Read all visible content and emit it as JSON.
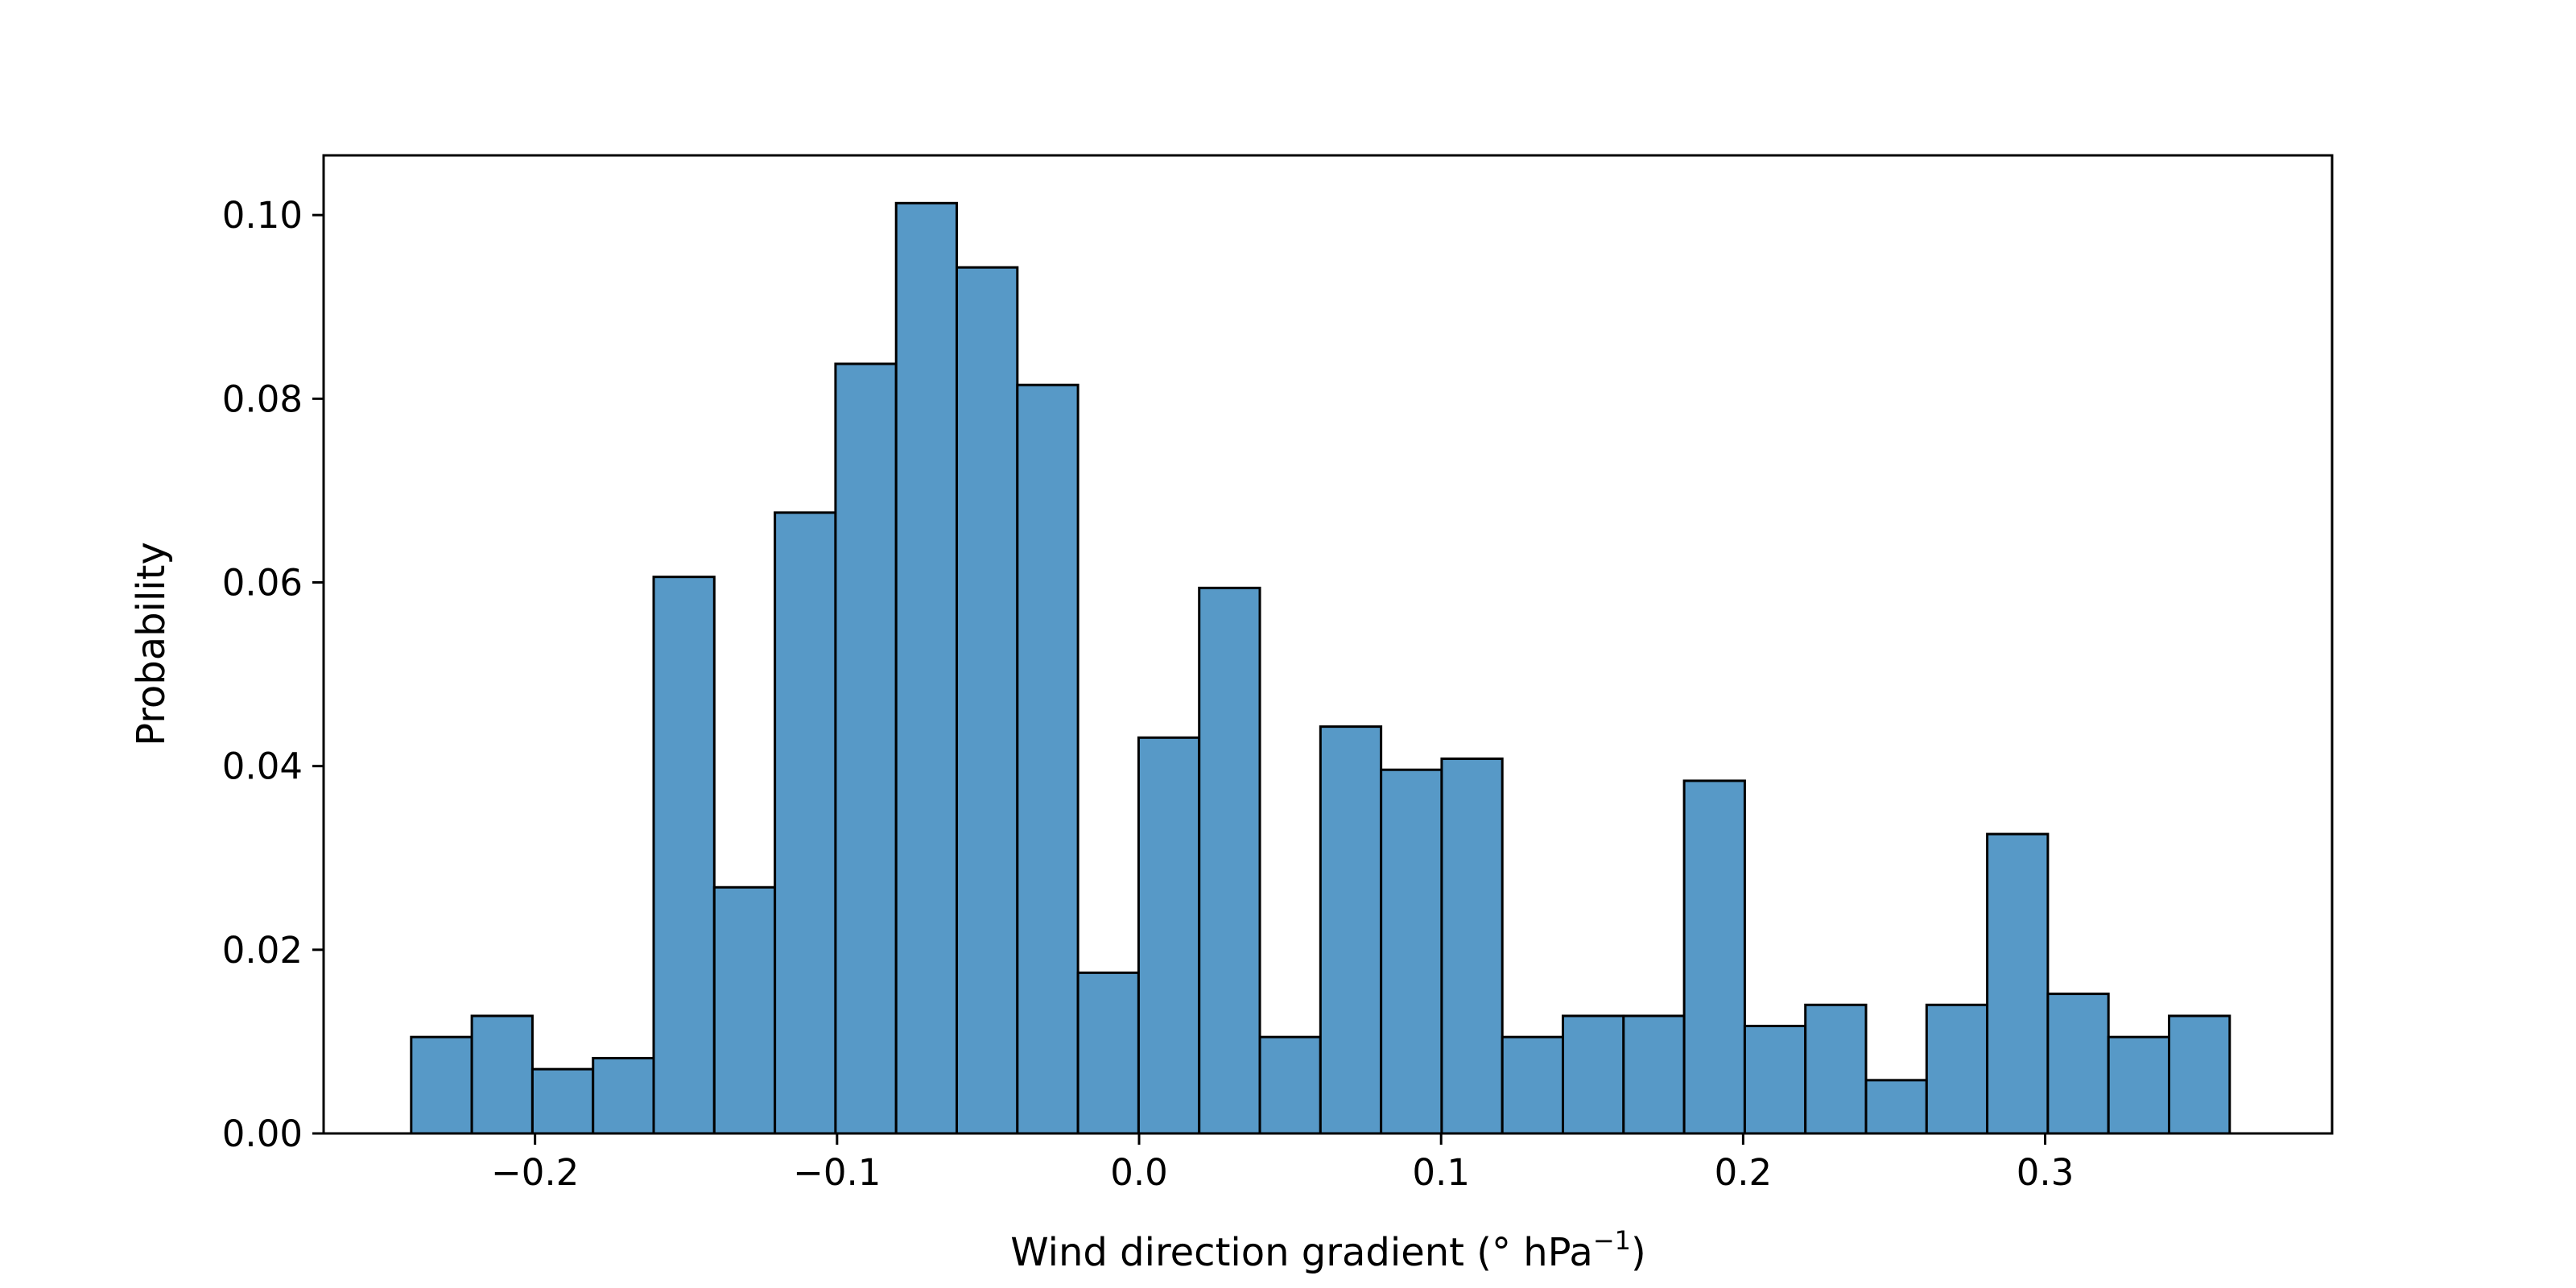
{
  "chart_data": {
    "type": "bar",
    "histogram": true,
    "xlabel": "Wind direction gradient (° hPa",
    "xlabel_sup": "−1",
    "xlabel_close": ")",
    "ylabel": "Probability",
    "xlim": [
      -0.27,
      0.395
    ],
    "ylim": [
      0,
      0.1065
    ],
    "bin_start": -0.241,
    "bin_width": 0.02007,
    "values": [
      0.0105,
      0.0128,
      0.007,
      0.0082,
      0.0606,
      0.0268,
      0.0676,
      0.0838,
      0.1013,
      0.0943,
      0.0815,
      0.0175,
      0.0431,
      0.0594,
      0.0105,
      0.0443,
      0.0396,
      0.0408,
      0.0105,
      0.0128,
      0.0128,
      0.0384,
      0.0117,
      0.014,
      0.0058,
      0.014,
      0.0326,
      0.0152,
      0.0105,
      0.0128
    ],
    "xticks": [
      -0.2,
      -0.1,
      0.0,
      0.1,
      0.2,
      0.3
    ],
    "xtick_labels": [
      "−0.2",
      "−0.1",
      "0.0",
      "0.1",
      "0.2",
      "0.3"
    ],
    "yticks": [
      0.0,
      0.02,
      0.04,
      0.06,
      0.08,
      0.1
    ],
    "ytick_labels": [
      "0.00",
      "0.02",
      "0.04",
      "0.06",
      "0.08",
      "0.10"
    ],
    "colors": {
      "bar_fill": "#5799c7",
      "bar_edge": "#000000",
      "axis": "#000000"
    },
    "grid": false,
    "legend": "none"
  }
}
